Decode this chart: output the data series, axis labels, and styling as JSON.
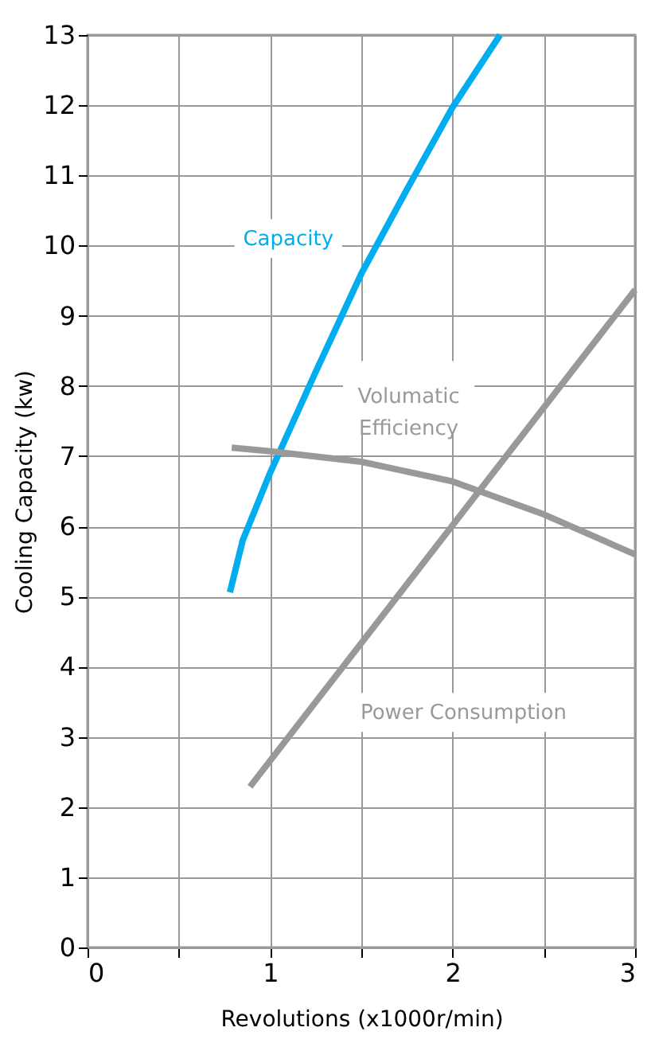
{
  "chart_data": {
    "type": "line",
    "xlabel": "Revolutions (x1000r/min)",
    "ylabel": "Cooling Capacity (kw)",
    "xlim": [
      0,
      3
    ],
    "ylim": [
      0,
      13
    ],
    "xticks": [
      0,
      {
        "value": 0.5,
        "label": null
      },
      1,
      {
        "value": 1.5,
        "label": null
      },
      2,
      {
        "value": 2.5,
        "label": null
      },
      3
    ],
    "yticks": [
      0,
      1,
      2,
      3,
      4,
      5,
      6,
      7,
      8,
      9,
      10,
      11,
      12,
      13
    ],
    "grid": true,
    "legend": false,
    "marker": "none",
    "line_style": "solid",
    "series": [
      {
        "name": "Capacity",
        "color": "#00aeef",
        "x": [
          0.78,
          0.85,
          1.0,
          1.25,
          1.5,
          1.75,
          2.0,
          2.26
        ],
        "values": [
          5.06,
          5.8,
          6.76,
          8.2,
          9.6,
          10.8,
          11.97,
          13.0
        ]
      },
      {
        "name": "Volumatic Efficiency",
        "color": "#999999",
        "x": [
          0.79,
          1.0,
          1.5,
          2.0,
          2.5,
          3.0
        ],
        "values": [
          7.12,
          7.07,
          6.92,
          6.64,
          6.17,
          5.6
        ]
      },
      {
        "name": "Power Consumption",
        "color": "#999999",
        "x": [
          0.89,
          3.0
        ],
        "values": [
          2.29,
          9.37
        ]
      }
    ]
  }
}
